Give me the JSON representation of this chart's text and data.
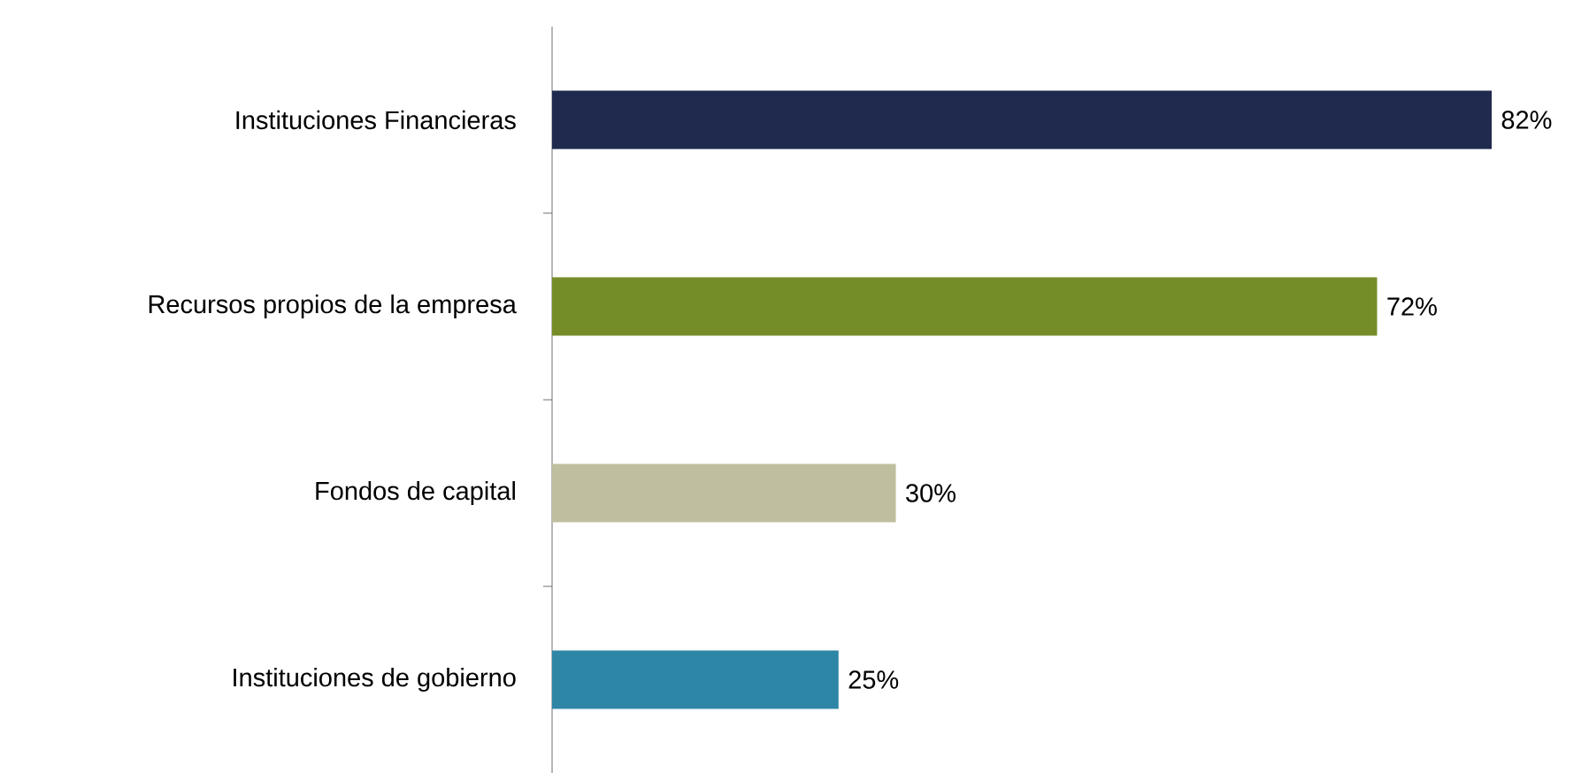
{
  "chart_data": {
    "type": "bar",
    "orientation": "horizontal",
    "categories": [
      "Instituciones Financieras",
      "Recursos propios de la empresa",
      "Fondos de capital",
      "Instituciones de gobierno"
    ],
    "values": [
      82,
      72,
      30,
      25
    ],
    "colors": [
      "#1f2a4e",
      "#758d29",
      "#bfbf9f",
      "#2e86a7"
    ],
    "value_labels": [
      "82%",
      "72%",
      "30%",
      "25%"
    ]
  }
}
